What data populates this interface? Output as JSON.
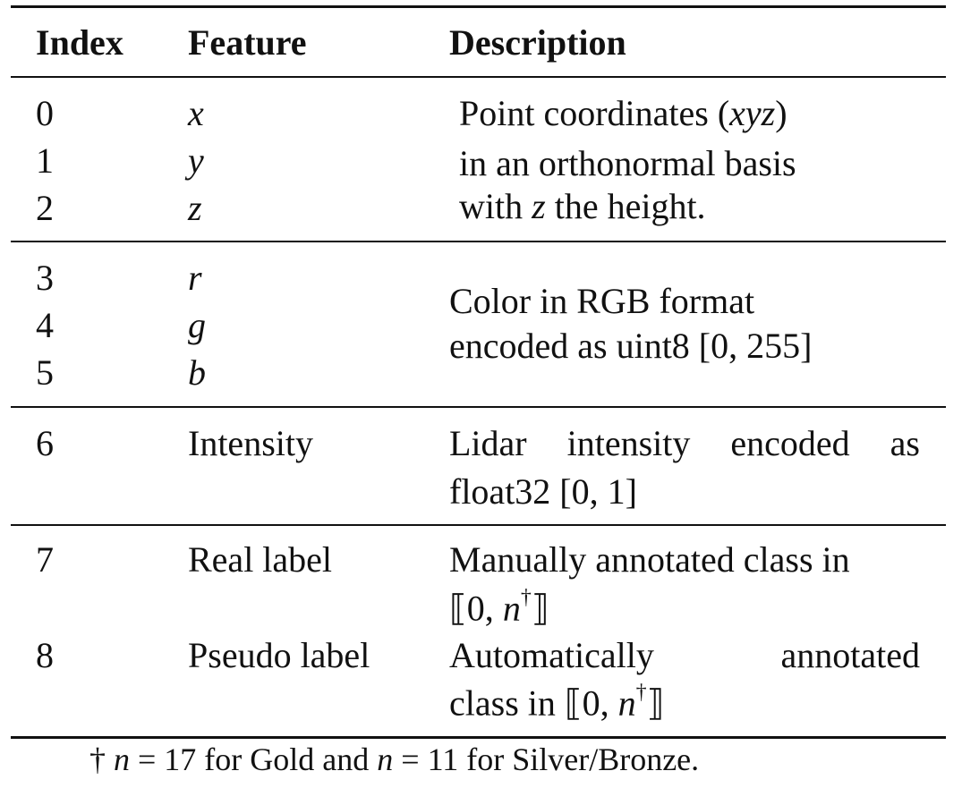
{
  "headers": {
    "index": "Index",
    "feature": "Feature",
    "description": "Description"
  },
  "group1": {
    "indices": [
      "0",
      "1",
      "2"
    ],
    "features": [
      "x",
      "y",
      "z"
    ],
    "desc": {
      "line1_pre": "Point coordinates (",
      "line1_ital": "xyz",
      "line1_post": ")",
      "line2": "in an orthonormal basis",
      "line3_pre": "with ",
      "line3_ital": "z",
      "line3_post": " the height."
    }
  },
  "group2": {
    "indices": [
      "3",
      "4",
      "5"
    ],
    "features": [
      "r",
      "g",
      "b"
    ],
    "desc": {
      "line1": "Color in RGB format",
      "line2": "encoded as uint8 [0, 255]"
    }
  },
  "group3": {
    "index": "6",
    "feature": "Intensity",
    "desc": {
      "line1_words": [
        "Lidar",
        "intensity",
        "encoded",
        "as"
      ],
      "line2": "float32 [0, 1]"
    }
  },
  "group4": {
    "rows": [
      {
        "index": "7",
        "feature": "Real label",
        "line1": "Manually annotated class in",
        "line2_pre": "⟦0, ",
        "line2_ital": "n",
        "line2_sup": "†",
        "line2_post": "⟧"
      },
      {
        "index": "8",
        "feature": "Pseudo label",
        "line1_words": [
          "Automatically",
          "annotated"
        ],
        "line2_pre": "class in ⟦0, ",
        "line2_ital": "n",
        "line2_sup": "†",
        "line2_post": "⟧"
      }
    ]
  },
  "footnote": {
    "dagger": "† ",
    "n1": "n",
    "mid1": " = 17 for Gold and ",
    "n2": "n",
    "mid2": " = 11 for Silver/Bronze."
  }
}
